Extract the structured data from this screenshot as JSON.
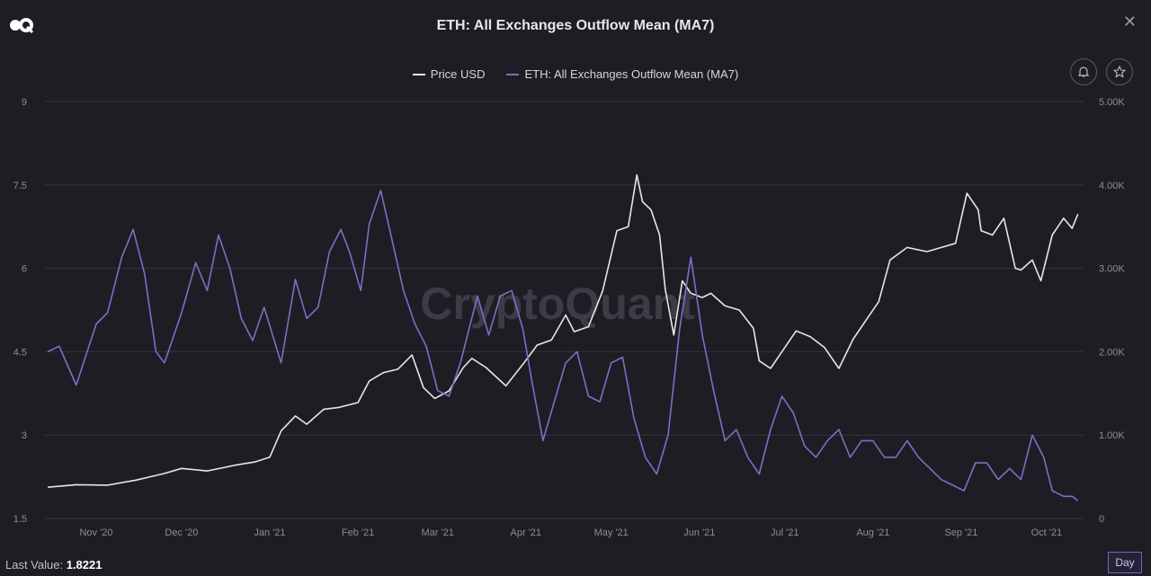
{
  "header": {
    "title": "ETH: All Exchanges Outflow Mean (MA7)",
    "close_glyph": "✕"
  },
  "watermark": "CryptoQuant",
  "icons": {
    "logo": "cryptoquant-logo-icon",
    "alert": "bell-icon",
    "favorite": "star-icon",
    "close": "close-icon"
  },
  "colors": {
    "background": "#1f1d24",
    "price": "#e6e6e6",
    "outflow": "#7b6fc4",
    "grid": "#34323c"
  },
  "legend": [
    {
      "label": "Price USD",
      "color": "#e6e6e6"
    },
    {
      "label": "ETH: All Exchanges Outflow Mean (MA7)",
      "color": "#7b6fc4"
    }
  ],
  "footer": {
    "last_value_label": "Last Value:",
    "last_value": "1.8221",
    "timeframe": "Day"
  },
  "chart_data": {
    "type": "line",
    "x_ticks": [
      "Nov '20",
      "Dec '20",
      "Jan '21",
      "Feb '21",
      "Mar '21",
      "Apr '21",
      "May '21",
      "Jun '21",
      "Jul '21",
      "Aug '21",
      "Sep '21",
      "Oct '21"
    ],
    "y_left_ticks": [
      "9",
      "7.5",
      "6",
      "4.5",
      "3",
      "1.5"
    ],
    "y_right_ticks": [
      "5.00K",
      "4.00K",
      "3.00K",
      "2.00K",
      "1.00K",
      "0"
    ],
    "y_left_range": [
      1.5,
      9
    ],
    "y_right_range": [
      0,
      5000
    ],
    "x_range": [
      "2020-10-14",
      "2021-10-14"
    ],
    "series": [
      {
        "name": "Price USD",
        "axis": "right",
        "color": "#e6e6e6",
        "points": [
          [
            "2020-10-15",
            375
          ],
          [
            "2020-10-25",
            405
          ],
          [
            "2020-11-05",
            400
          ],
          [
            "2020-11-15",
            460
          ],
          [
            "2020-11-25",
            540
          ],
          [
            "2020-12-01",
            600
          ],
          [
            "2020-12-10",
            570
          ],
          [
            "2020-12-20",
            640
          ],
          [
            "2020-12-27",
            680
          ],
          [
            "2021-01-01",
            735
          ],
          [
            "2021-01-05",
            1050
          ],
          [
            "2021-01-10",
            1230
          ],
          [
            "2021-01-14",
            1130
          ],
          [
            "2021-01-20",
            1310
          ],
          [
            "2021-01-25",
            1330
          ],
          [
            "2021-02-01",
            1390
          ],
          [
            "2021-02-05",
            1650
          ],
          [
            "2021-02-10",
            1750
          ],
          [
            "2021-02-15",
            1790
          ],
          [
            "2021-02-20",
            1960
          ],
          [
            "2021-02-24",
            1570
          ],
          [
            "2021-02-28",
            1440
          ],
          [
            "2021-03-05",
            1530
          ],
          [
            "2021-03-10",
            1810
          ],
          [
            "2021-03-13",
            1920
          ],
          [
            "2021-03-18",
            1810
          ],
          [
            "2021-03-25",
            1590
          ],
          [
            "2021-03-31",
            1850
          ],
          [
            "2021-04-05",
            2080
          ],
          [
            "2021-04-10",
            2140
          ],
          [
            "2021-04-15",
            2440
          ],
          [
            "2021-04-18",
            2240
          ],
          [
            "2021-04-23",
            2300
          ],
          [
            "2021-04-28",
            2730
          ],
          [
            "2021-05-03",
            3450
          ],
          [
            "2021-05-07",
            3500
          ],
          [
            "2021-05-10",
            4120
          ],
          [
            "2021-05-12",
            3800
          ],
          [
            "2021-05-15",
            3700
          ],
          [
            "2021-05-18",
            3400
          ],
          [
            "2021-05-20",
            2750
          ],
          [
            "2021-05-23",
            2200
          ],
          [
            "2021-05-26",
            2850
          ],
          [
            "2021-05-29",
            2700
          ],
          [
            "2021-06-02",
            2650
          ],
          [
            "2021-06-05",
            2700
          ],
          [
            "2021-06-10",
            2550
          ],
          [
            "2021-06-15",
            2500
          ],
          [
            "2021-06-20",
            2280
          ],
          [
            "2021-06-22",
            1890
          ],
          [
            "2021-06-26",
            1800
          ],
          [
            "2021-07-01",
            2050
          ],
          [
            "2021-07-05",
            2250
          ],
          [
            "2021-07-10",
            2180
          ],
          [
            "2021-07-15",
            2050
          ],
          [
            "2021-07-20",
            1800
          ],
          [
            "2021-07-25",
            2150
          ],
          [
            "2021-07-30",
            2400
          ],
          [
            "2021-08-03",
            2600
          ],
          [
            "2021-08-07",
            3100
          ],
          [
            "2021-08-13",
            3250
          ],
          [
            "2021-08-20",
            3200
          ],
          [
            "2021-08-25",
            3250
          ],
          [
            "2021-08-30",
            3300
          ],
          [
            "2021-09-03",
            3900
          ],
          [
            "2021-09-07",
            3700
          ],
          [
            "2021-09-08",
            3450
          ],
          [
            "2021-09-12",
            3400
          ],
          [
            "2021-09-16",
            3600
          ],
          [
            "2021-09-20",
            3000
          ],
          [
            "2021-09-22",
            2980
          ],
          [
            "2021-09-26",
            3100
          ],
          [
            "2021-09-29",
            2850
          ],
          [
            "2021-10-03",
            3400
          ],
          [
            "2021-10-07",
            3600
          ],
          [
            "2021-10-10",
            3480
          ],
          [
            "2021-10-12",
            3650
          ]
        ]
      },
      {
        "name": "ETH: All Exchanges Outflow Mean (MA7)",
        "axis": "left",
        "color": "#7b6fc4",
        "points": [
          [
            "2020-10-15",
            4.5
          ],
          [
            "2020-10-19",
            4.6
          ],
          [
            "2020-10-25",
            3.9
          ],
          [
            "2020-11-01",
            5.0
          ],
          [
            "2020-11-05",
            5.2
          ],
          [
            "2020-11-10",
            6.2
          ],
          [
            "2020-11-14",
            6.7
          ],
          [
            "2020-11-18",
            5.9
          ],
          [
            "2020-11-22",
            4.5
          ],
          [
            "2020-11-25",
            4.3
          ],
          [
            "2020-12-01",
            5.2
          ],
          [
            "2020-12-06",
            6.1
          ],
          [
            "2020-12-10",
            5.6
          ],
          [
            "2020-12-14",
            6.6
          ],
          [
            "2020-12-18",
            6.0
          ],
          [
            "2020-12-22",
            5.1
          ],
          [
            "2020-12-26",
            4.7
          ],
          [
            "2020-12-30",
            5.3
          ],
          [
            "2021-01-05",
            4.3
          ],
          [
            "2021-01-10",
            5.8
          ],
          [
            "2021-01-14",
            5.1
          ],
          [
            "2021-01-18",
            5.3
          ],
          [
            "2021-01-22",
            6.3
          ],
          [
            "2021-01-26",
            6.7
          ],
          [
            "2021-01-29",
            6.3
          ],
          [
            "2021-02-02",
            5.6
          ],
          [
            "2021-02-05",
            6.8
          ],
          [
            "2021-02-09",
            7.4
          ],
          [
            "2021-02-13",
            6.5
          ],
          [
            "2021-02-17",
            5.6
          ],
          [
            "2021-02-21",
            5.0
          ],
          [
            "2021-02-25",
            4.6
          ],
          [
            "2021-03-01",
            3.8
          ],
          [
            "2021-03-05",
            3.7
          ],
          [
            "2021-03-09",
            4.3
          ],
          [
            "2021-03-12",
            4.9
          ],
          [
            "2021-03-15",
            5.5
          ],
          [
            "2021-03-19",
            4.8
          ],
          [
            "2021-03-23",
            5.5
          ],
          [
            "2021-03-27",
            5.6
          ],
          [
            "2021-03-31",
            4.9
          ],
          [
            "2021-04-03",
            4.0
          ],
          [
            "2021-04-07",
            2.9
          ],
          [
            "2021-04-11",
            3.6
          ],
          [
            "2021-04-15",
            4.3
          ],
          [
            "2021-04-19",
            4.5
          ],
          [
            "2021-04-23",
            3.7
          ],
          [
            "2021-04-27",
            3.6
          ],
          [
            "2021-05-01",
            4.3
          ],
          [
            "2021-05-05",
            4.4
          ],
          [
            "2021-05-09",
            3.3
          ],
          [
            "2021-05-13",
            2.6
          ],
          [
            "2021-05-17",
            2.3
          ],
          [
            "2021-05-21",
            3.0
          ],
          [
            "2021-05-25",
            4.9
          ],
          [
            "2021-05-29",
            6.2
          ],
          [
            "2021-06-02",
            4.8
          ],
          [
            "2021-06-06",
            3.8
          ],
          [
            "2021-06-10",
            2.9
          ],
          [
            "2021-06-14",
            3.1
          ],
          [
            "2021-06-18",
            2.6
          ],
          [
            "2021-06-22",
            2.3
          ],
          [
            "2021-06-26",
            3.1
          ],
          [
            "2021-06-30",
            3.7
          ],
          [
            "2021-07-04",
            3.4
          ],
          [
            "2021-07-08",
            2.8
          ],
          [
            "2021-07-12",
            2.6
          ],
          [
            "2021-07-16",
            2.9
          ],
          [
            "2021-07-20",
            3.1
          ],
          [
            "2021-07-24",
            2.6
          ],
          [
            "2021-07-28",
            2.9
          ],
          [
            "2021-08-01",
            2.9
          ],
          [
            "2021-08-05",
            2.6
          ],
          [
            "2021-08-09",
            2.6
          ],
          [
            "2021-08-13",
            2.9
          ],
          [
            "2021-08-17",
            2.6
          ],
          [
            "2021-08-21",
            2.4
          ],
          [
            "2021-08-25",
            2.2
          ],
          [
            "2021-08-29",
            2.1
          ],
          [
            "2021-09-02",
            2.0
          ],
          [
            "2021-09-06",
            2.5
          ],
          [
            "2021-09-10",
            2.5
          ],
          [
            "2021-09-14",
            2.2
          ],
          [
            "2021-09-18",
            2.4
          ],
          [
            "2021-09-22",
            2.2
          ],
          [
            "2021-09-26",
            3.0
          ],
          [
            "2021-09-30",
            2.6
          ],
          [
            "2021-10-03",
            2.0
          ],
          [
            "2021-10-07",
            1.9
          ],
          [
            "2021-10-10",
            1.9
          ],
          [
            "2021-10-12",
            1.82
          ]
        ]
      }
    ],
    "grid": true,
    "legend_position": "top-center"
  }
}
